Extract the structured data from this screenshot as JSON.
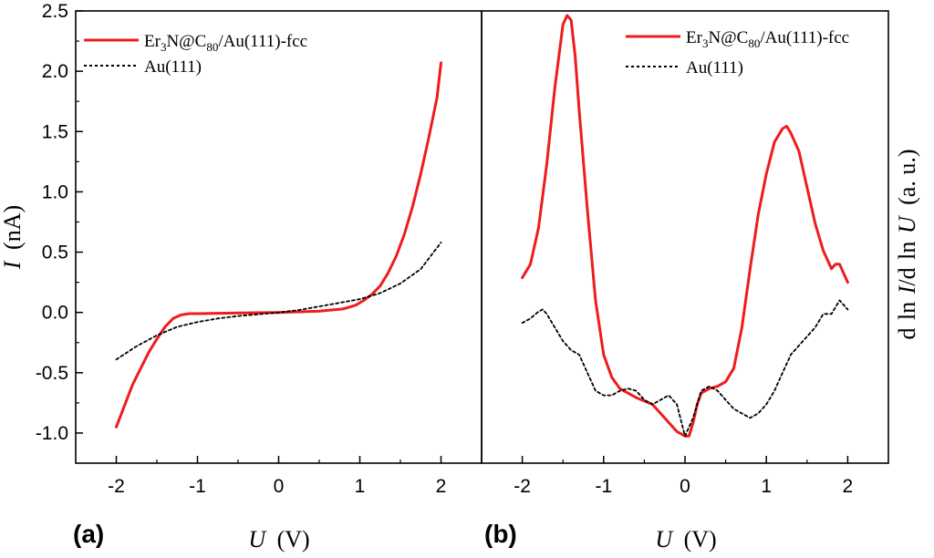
{
  "colors": {
    "sample": "#ee1c1c",
    "reference": "#000000"
  },
  "chart_data": [
    {
      "type": "line",
      "panel_label": "(a)",
      "xlabel_var": "U",
      "xlabel_unit": "(V)",
      "ylabel_var": "I",
      "ylabel_unit": "(nA)",
      "xlim": [
        -2.5,
        2.5
      ],
      "ylim": [
        -1.25,
        2.5
      ],
      "xticks": [
        -2,
        -1,
        0,
        1,
        2
      ],
      "xtick_labels": [
        "-2",
        "-1",
        "0",
        "1",
        "2"
      ],
      "yticks": [
        -1.0,
        -0.5,
        0.0,
        0.5,
        1.0,
        1.5,
        2.0,
        2.5
      ],
      "ytick_labels": [
        "-1.0",
        "-0.5",
        "0.0",
        "0.5",
        "1.0",
        "1.5",
        "2.0",
        "2.5"
      ],
      "legend": {
        "position": "top-left",
        "entries": [
          {
            "base": "Er",
            "sub1": "3",
            "mid": "N@C",
            "sub2": "80",
            "rest": "/Au(111)-fcc"
          },
          {
            "text": "Au(111)"
          }
        ]
      },
      "series": [
        {
          "name": "Er3N@C80/Au(111)-fcc",
          "style": "solid",
          "x": [
            -2.0,
            -1.8,
            -1.6,
            -1.5,
            -1.4,
            -1.3,
            -1.2,
            -1.1,
            -1.0,
            -0.5,
            0.0,
            0.5,
            0.8,
            0.95,
            1.05,
            1.15,
            1.25,
            1.35,
            1.45,
            1.55,
            1.65,
            1.75,
            1.85,
            1.95,
            2.0
          ],
          "y": [
            -0.95,
            -0.6,
            -0.33,
            -0.22,
            -0.12,
            -0.05,
            -0.02,
            -0.01,
            -0.01,
            -0.005,
            0.0,
            0.01,
            0.03,
            0.06,
            0.1,
            0.15,
            0.22,
            0.33,
            0.47,
            0.65,
            0.88,
            1.15,
            1.45,
            1.78,
            2.07
          ]
        },
        {
          "name": "Au(111)",
          "style": "dotted",
          "x": [
            -2.0,
            -1.75,
            -1.5,
            -1.25,
            -1.0,
            -0.75,
            -0.5,
            -0.25,
            0.0,
            0.25,
            0.5,
            0.75,
            1.0,
            1.25,
            1.5,
            1.75,
            2.0
          ],
          "y": [
            -0.39,
            -0.28,
            -0.19,
            -0.12,
            -0.08,
            -0.05,
            -0.03,
            -0.015,
            0.0,
            0.02,
            0.05,
            0.08,
            0.11,
            0.16,
            0.24,
            0.36,
            0.58
          ]
        }
      ]
    },
    {
      "type": "line",
      "panel_label": "(b)",
      "xlabel_var": "U",
      "xlabel_unit": "(V)",
      "ylabel_text": "d ln I / d ln U (a. u.)",
      "ylabel_parts": [
        "d",
        "ln",
        "I",
        "/d",
        "ln",
        "U",
        "(a. u.)"
      ],
      "xlim": [
        -2.5,
        2.5
      ],
      "ylim": [
        0,
        1
      ],
      "xticks": [
        -2,
        -1,
        0,
        1,
        2
      ],
      "xtick_labels": [
        "-2",
        "-1",
        "0",
        "1",
        "2"
      ],
      "legend": {
        "position": "top-right",
        "entries": [
          {
            "base": "Er",
            "sub1": "3",
            "mid": "N@C",
            "sub2": "80",
            "rest": "/Au(111)-fcc"
          },
          {
            "text": "Au(111)"
          }
        ]
      },
      "series": [
        {
          "name": "Er3N@C80/Au(111)-fcc",
          "style": "solid",
          "x": [
            -2.0,
            -1.9,
            -1.8,
            -1.7,
            -1.6,
            -1.5,
            -1.45,
            -1.4,
            -1.35,
            -1.3,
            -1.2,
            -1.1,
            -1.0,
            -0.9,
            -0.8,
            -0.6,
            -0.4,
            -0.3,
            -0.2,
            -0.1,
            0.0,
            0.05,
            0.1,
            0.15,
            0.2,
            0.3,
            0.4,
            0.5,
            0.6,
            0.7,
            0.8,
            0.9,
            1.0,
            1.1,
            1.2,
            1.25,
            1.3,
            1.4,
            1.5,
            1.6,
            1.7,
            1.8,
            1.85,
            1.9,
            1.95,
            2.0
          ],
          "y": [
            0.41,
            0.44,
            0.52,
            0.66,
            0.83,
            0.97,
            0.99,
            0.98,
            0.9,
            0.78,
            0.56,
            0.36,
            0.24,
            0.19,
            0.165,
            0.145,
            0.13,
            0.11,
            0.09,
            0.07,
            0.06,
            0.06,
            0.09,
            0.13,
            0.155,
            0.165,
            0.17,
            0.18,
            0.21,
            0.3,
            0.43,
            0.55,
            0.64,
            0.71,
            0.74,
            0.745,
            0.73,
            0.69,
            0.61,
            0.53,
            0.47,
            0.43,
            0.44,
            0.44,
            0.42,
            0.4
          ]
        },
        {
          "name": "Au(111)",
          "style": "dotted",
          "x": [
            -2.0,
            -1.9,
            -1.8,
            -1.75,
            -1.7,
            -1.6,
            -1.5,
            -1.4,
            -1.3,
            -1.2,
            -1.1,
            -1.0,
            -0.9,
            -0.8,
            -0.7,
            -0.6,
            -0.5,
            -0.4,
            -0.3,
            -0.2,
            -0.1,
            0.0,
            0.1,
            0.2,
            0.3,
            0.4,
            0.5,
            0.6,
            0.7,
            0.8,
            0.9,
            1.0,
            1.1,
            1.2,
            1.3,
            1.4,
            1.5,
            1.6,
            1.7,
            1.8,
            1.9,
            2.0
          ],
          "y": [
            0.31,
            0.32,
            0.335,
            0.34,
            0.33,
            0.3,
            0.27,
            0.25,
            0.24,
            0.2,
            0.16,
            0.15,
            0.15,
            0.16,
            0.165,
            0.16,
            0.14,
            0.13,
            0.14,
            0.15,
            0.13,
            0.06,
            0.1,
            0.16,
            0.17,
            0.16,
            0.14,
            0.12,
            0.11,
            0.1,
            0.11,
            0.13,
            0.16,
            0.2,
            0.24,
            0.26,
            0.28,
            0.3,
            0.33,
            0.33,
            0.36,
            0.34
          ]
        }
      ]
    }
  ]
}
